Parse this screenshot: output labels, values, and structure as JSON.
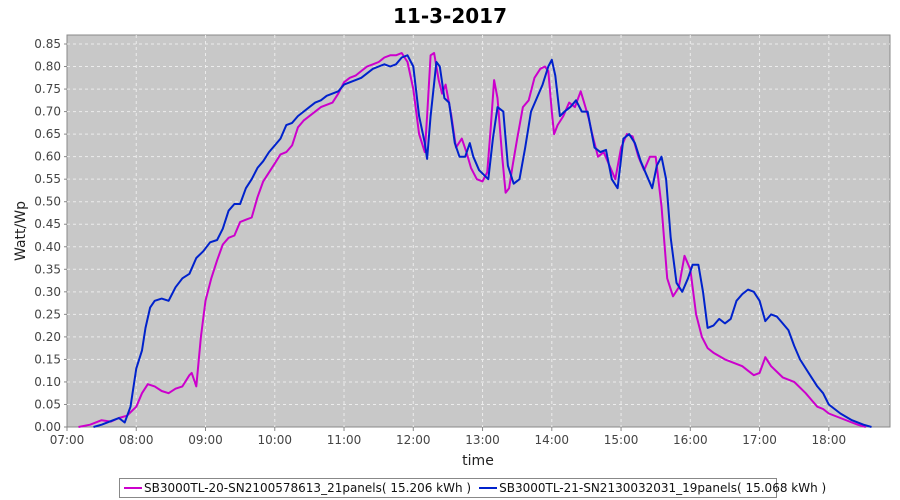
{
  "chart_data": {
    "type": "line",
    "title": "11-3-2017",
    "xlabel": "time",
    "ylabel": "Watt/Wp",
    "xlim": [
      "07:00",
      "18:53"
    ],
    "ylim": [
      0,
      0.87
    ],
    "grid": true,
    "legend_position": "bottom",
    "x_ticks": [
      "07:00",
      "08:00",
      "09:00",
      "10:00",
      "11:00",
      "12:00",
      "13:00",
      "14:00",
      "15:00",
      "16:00",
      "17:00",
      "18:00"
    ],
    "y_ticks": [
      "0.00",
      "0.05",
      "0.10",
      "0.15",
      "0.20",
      "0.25",
      "0.30",
      "0.35",
      "0.40",
      "0.45",
      "0.50",
      "0.55",
      "0.60",
      "0.65",
      "0.70",
      "0.75",
      "0.80",
      "0.85"
    ],
    "colors": {
      "plot_bg": "#c8c8c8",
      "grid": "#ececec",
      "series1": "#cc00cc",
      "series2": "#0022cc"
    },
    "series": [
      {
        "name": "SB3000TL-20-SN2100578613_21panels( 15.206 kWh )",
        "color": "#cc00cc",
        "points": [
          [
            "07:10",
            0.0
          ],
          [
            "07:20",
            0.005
          ],
          [
            "07:30",
            0.015
          ],
          [
            "07:38",
            0.012
          ],
          [
            "07:45",
            0.02
          ],
          [
            "07:52",
            0.025
          ],
          [
            "08:00",
            0.045
          ],
          [
            "08:05",
            0.075
          ],
          [
            "08:10",
            0.095
          ],
          [
            "08:16",
            0.09
          ],
          [
            "08:22",
            0.08
          ],
          [
            "08:28",
            0.075
          ],
          [
            "08:34",
            0.085
          ],
          [
            "08:40",
            0.09
          ],
          [
            "08:46",
            0.115
          ],
          [
            "08:48",
            0.12
          ],
          [
            "08:52",
            0.09
          ],
          [
            "08:56",
            0.2
          ],
          [
            "09:00",
            0.28
          ],
          [
            "09:05",
            0.33
          ],
          [
            "09:10",
            0.37
          ],
          [
            "09:15",
            0.405
          ],
          [
            "09:20",
            0.42
          ],
          [
            "09:25",
            0.425
          ],
          [
            "09:30",
            0.455
          ],
          [
            "09:35",
            0.46
          ],
          [
            "09:40",
            0.465
          ],
          [
            "09:45",
            0.51
          ],
          [
            "09:50",
            0.545
          ],
          [
            "09:55",
            0.565
          ],
          [
            "10:00",
            0.585
          ],
          [
            "10:05",
            0.605
          ],
          [
            "10:10",
            0.61
          ],
          [
            "10:15",
            0.625
          ],
          [
            "10:20",
            0.665
          ],
          [
            "10:25",
            0.68
          ],
          [
            "10:30",
            0.69
          ],
          [
            "10:35",
            0.7
          ],
          [
            "10:40",
            0.71
          ],
          [
            "10:45",
            0.715
          ],
          [
            "10:50",
            0.72
          ],
          [
            "10:55",
            0.74
          ],
          [
            "11:00",
            0.765
          ],
          [
            "11:05",
            0.775
          ],
          [
            "11:10",
            0.78
          ],
          [
            "11:15",
            0.79
          ],
          [
            "11:20",
            0.8
          ],
          [
            "11:25",
            0.805
          ],
          [
            "11:30",
            0.81
          ],
          [
            "11:35",
            0.82
          ],
          [
            "11:40",
            0.825
          ],
          [
            "11:45",
            0.825
          ],
          [
            "11:50",
            0.83
          ],
          [
            "11:55",
            0.81
          ],
          [
            "12:00",
            0.75
          ],
          [
            "12:05",
            0.65
          ],
          [
            "12:10",
            0.61
          ],
          [
            "12:12",
            0.69
          ],
          [
            "12:15",
            0.825
          ],
          [
            "12:18",
            0.83
          ],
          [
            "12:22",
            0.77
          ],
          [
            "12:25",
            0.74
          ],
          [
            "12:28",
            0.76
          ],
          [
            "12:33",
            0.69
          ],
          [
            "12:37",
            0.62
          ],
          [
            "12:42",
            0.64
          ],
          [
            "12:46",
            0.61
          ],
          [
            "12:50",
            0.575
          ],
          [
            "12:55",
            0.55
          ],
          [
            "13:00",
            0.545
          ],
          [
            "13:04",
            0.565
          ],
          [
            "13:07",
            0.66
          ],
          [
            "13:10",
            0.77
          ],
          [
            "13:13",
            0.73
          ],
          [
            "13:17",
            0.6
          ],
          [
            "13:20",
            0.52
          ],
          [
            "13:23",
            0.53
          ],
          [
            "13:26",
            0.58
          ],
          [
            "13:30",
            0.64
          ],
          [
            "13:35",
            0.71
          ],
          [
            "13:40",
            0.725
          ],
          [
            "13:45",
            0.775
          ],
          [
            "13:50",
            0.795
          ],
          [
            "13:54",
            0.8
          ],
          [
            "13:57",
            0.79
          ],
          [
            "14:00",
            0.7
          ],
          [
            "14:02",
            0.65
          ],
          [
            "14:05",
            0.67
          ],
          [
            "14:10",
            0.69
          ],
          [
            "14:15",
            0.72
          ],
          [
            "14:20",
            0.71
          ],
          [
            "14:25",
            0.745
          ],
          [
            "14:28",
            0.72
          ],
          [
            "14:32",
            0.685
          ],
          [
            "14:35",
            0.65
          ],
          [
            "14:40",
            0.6
          ],
          [
            "14:45",
            0.61
          ],
          [
            "14:50",
            0.58
          ],
          [
            "14:55",
            0.55
          ],
          [
            "15:00",
            0.62
          ],
          [
            "15:05",
            0.65
          ],
          [
            "15:10",
            0.645
          ],
          [
            "15:15",
            0.6
          ],
          [
            "15:20",
            0.57
          ],
          [
            "15:25",
            0.6
          ],
          [
            "15:30",
            0.6
          ],
          [
            "15:35",
            0.49
          ],
          [
            "15:40",
            0.33
          ],
          [
            "15:45",
            0.29
          ],
          [
            "15:50",
            0.31
          ],
          [
            "15:55",
            0.38
          ],
          [
            "16:00",
            0.35
          ],
          [
            "16:05",
            0.25
          ],
          [
            "16:10",
            0.2
          ],
          [
            "16:15",
            0.175
          ],
          [
            "16:20",
            0.165
          ],
          [
            "16:30",
            0.15
          ],
          [
            "16:40",
            0.14
          ],
          [
            "16:45",
            0.135
          ],
          [
            "16:50",
            0.125
          ],
          [
            "16:55",
            0.115
          ],
          [
            "17:00",
            0.12
          ],
          [
            "17:05",
            0.155
          ],
          [
            "17:10",
            0.135
          ],
          [
            "17:20",
            0.11
          ],
          [
            "17:30",
            0.1
          ],
          [
            "17:40",
            0.075
          ],
          [
            "17:45",
            0.06
          ],
          [
            "17:50",
            0.045
          ],
          [
            "17:55",
            0.04
          ],
          [
            "18:00",
            0.03
          ],
          [
            "18:10",
            0.02
          ],
          [
            "18:20",
            0.01
          ],
          [
            "18:25",
            0.005
          ],
          [
            "18:32",
            0.0
          ]
        ]
      },
      {
        "name": "SB3000TL-21-SN2130032031_19panels( 15.068 kWh )",
        "color": "#0022cc",
        "points": [
          [
            "07:23",
            0.0
          ],
          [
            "07:30",
            0.005
          ],
          [
            "07:40",
            0.015
          ],
          [
            "07:45",
            0.02
          ],
          [
            "07:50",
            0.01
          ],
          [
            "07:55",
            0.045
          ],
          [
            "08:00",
            0.13
          ],
          [
            "08:05",
            0.17
          ],
          [
            "08:08",
            0.22
          ],
          [
            "08:12",
            0.265
          ],
          [
            "08:16",
            0.28
          ],
          [
            "08:22",
            0.285
          ],
          [
            "08:28",
            0.28
          ],
          [
            "08:34",
            0.31
          ],
          [
            "08:40",
            0.33
          ],
          [
            "08:46",
            0.34
          ],
          [
            "08:52",
            0.375
          ],
          [
            "08:58",
            0.39
          ],
          [
            "09:04",
            0.41
          ],
          [
            "09:10",
            0.415
          ],
          [
            "09:15",
            0.44
          ],
          [
            "09:20",
            0.48
          ],
          [
            "09:25",
            0.495
          ],
          [
            "09:30",
            0.495
          ],
          [
            "09:35",
            0.53
          ],
          [
            "09:40",
            0.55
          ],
          [
            "09:45",
            0.575
          ],
          [
            "09:50",
            0.59
          ],
          [
            "09:55",
            0.61
          ],
          [
            "10:00",
            0.625
          ],
          [
            "10:05",
            0.64
          ],
          [
            "10:10",
            0.67
          ],
          [
            "10:15",
            0.675
          ],
          [
            "10:20",
            0.69
          ],
          [
            "10:25",
            0.7
          ],
          [
            "10:30",
            0.71
          ],
          [
            "10:35",
            0.72
          ],
          [
            "10:40",
            0.725
          ],
          [
            "10:45",
            0.735
          ],
          [
            "10:50",
            0.74
          ],
          [
            "10:55",
            0.745
          ],
          [
            "11:00",
            0.76
          ],
          [
            "11:05",
            0.765
          ],
          [
            "11:10",
            0.77
          ],
          [
            "11:15",
            0.775
          ],
          [
            "11:20",
            0.785
          ],
          [
            "11:25",
            0.795
          ],
          [
            "11:30",
            0.8
          ],
          [
            "11:35",
            0.805
          ],
          [
            "11:40",
            0.8
          ],
          [
            "11:45",
            0.805
          ],
          [
            "11:50",
            0.82
          ],
          [
            "11:55",
            0.825
          ],
          [
            "12:00",
            0.8
          ],
          [
            "12:05",
            0.69
          ],
          [
            "12:10",
            0.63
          ],
          [
            "12:12",
            0.595
          ],
          [
            "12:15",
            0.69
          ],
          [
            "12:20",
            0.81
          ],
          [
            "12:23",
            0.8
          ],
          [
            "12:27",
            0.73
          ],
          [
            "12:31",
            0.72
          ],
          [
            "12:36",
            0.63
          ],
          [
            "12:40",
            0.6
          ],
          [
            "12:45",
            0.6
          ],
          [
            "12:49",
            0.63
          ],
          [
            "12:52",
            0.6
          ],
          [
            "12:57",
            0.57
          ],
          [
            "13:01",
            0.56
          ],
          [
            "13:05",
            0.55
          ],
          [
            "13:09",
            0.64
          ],
          [
            "13:13",
            0.71
          ],
          [
            "13:18",
            0.7
          ],
          [
            "13:22",
            0.58
          ],
          [
            "13:27",
            0.54
          ],
          [
            "13:32",
            0.55
          ],
          [
            "13:37",
            0.62
          ],
          [
            "13:42",
            0.7
          ],
          [
            "13:47",
            0.73
          ],
          [
            "13:52",
            0.76
          ],
          [
            "13:57",
            0.8
          ],
          [
            "14:00",
            0.815
          ],
          [
            "14:03",
            0.78
          ],
          [
            "14:07",
            0.69
          ],
          [
            "14:11",
            0.7
          ],
          [
            "14:16",
            0.71
          ],
          [
            "14:21",
            0.725
          ],
          [
            "14:26",
            0.7
          ],
          [
            "14:31",
            0.7
          ],
          [
            "14:37",
            0.62
          ],
          [
            "14:42",
            0.61
          ],
          [
            "14:47",
            0.615
          ],
          [
            "14:52",
            0.55
          ],
          [
            "14:57",
            0.53
          ],
          [
            "15:02",
            0.64
          ],
          [
            "15:07",
            0.65
          ],
          [
            "15:12",
            0.63
          ],
          [
            "15:17",
            0.59
          ],
          [
            "15:22",
            0.56
          ],
          [
            "15:27",
            0.53
          ],
          [
            "15:31",
            0.58
          ],
          [
            "15:35",
            0.6
          ],
          [
            "15:39",
            0.55
          ],
          [
            "15:43",
            0.42
          ],
          [
            "15:48",
            0.32
          ],
          [
            "15:53",
            0.3
          ],
          [
            "15:58",
            0.33
          ],
          [
            "16:02",
            0.36
          ],
          [
            "16:07",
            0.36
          ],
          [
            "16:11",
            0.3
          ],
          [
            "16:15",
            0.22
          ],
          [
            "16:20",
            0.225
          ],
          [
            "16:25",
            0.24
          ],
          [
            "16:30",
            0.23
          ],
          [
            "16:35",
            0.24
          ],
          [
            "16:40",
            0.28
          ],
          [
            "16:45",
            0.295
          ],
          [
            "16:50",
            0.305
          ],
          [
            "16:55",
            0.3
          ],
          [
            "17:00",
            0.28
          ],
          [
            "17:05",
            0.235
          ],
          [
            "17:10",
            0.25
          ],
          [
            "17:15",
            0.245
          ],
          [
            "17:20",
            0.23
          ],
          [
            "17:25",
            0.215
          ],
          [
            "17:30",
            0.18
          ],
          [
            "17:35",
            0.15
          ],
          [
            "17:40",
            0.13
          ],
          [
            "17:45",
            0.11
          ],
          [
            "17:50",
            0.09
          ],
          [
            "17:55",
            0.075
          ],
          [
            "18:00",
            0.05
          ],
          [
            "18:10",
            0.03
          ],
          [
            "18:20",
            0.015
          ],
          [
            "18:30",
            0.005
          ],
          [
            "18:37",
            0.0
          ]
        ]
      }
    ]
  }
}
